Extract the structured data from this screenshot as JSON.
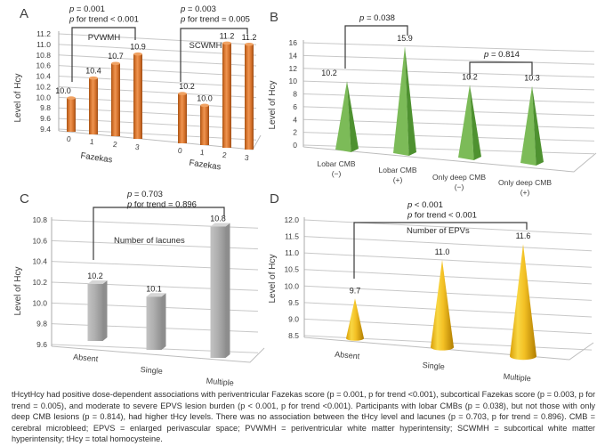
{
  "caption": "tHcytHcy had positive dose-dependent associations with periventricular Fazekas score (p = 0.001, p for trend <0.001), subcortical Fazekas score (p = 0.003, p for trend = 0.005), and moderate to severe EPVS lesion burden (p < 0.001, p for trend <0.001). Participants with lobar CMBs (p = 0.038), but not those with only deep CMB lesions (p = 0.814), had higher tHcy levels. There was no association between the tHcy level and lacunes (p = 0.703, p for trend = 0.896). CMB = cerebral microbleed; EPVS = enlarged perivascular space; PVWMH = periventricular white matter hyperintensity; SCWMH = subcortical white matter hyperintensity; tHcy = total homocysteine.",
  "chart_data": [
    {
      "panel": "A",
      "type": "bar",
      "bar_style": "cylinder",
      "color": "#E07A33",
      "ylabel": "Level of Hcy",
      "ylim": [
        9.4,
        11.2
      ],
      "ytick_step": 0.2,
      "yticks": [
        "11.2",
        "11.0",
        "10.8",
        "10.6",
        "10.4",
        "10.2",
        "10.0",
        "9.8",
        "9.6",
        "9.4"
      ],
      "grid": true,
      "groups": [
        {
          "name": "PVWMH",
          "xlabel": "Fazekas",
          "categories": [
            "0",
            "1",
            "2",
            "3"
          ],
          "values": [
            10.0,
            10.4,
            10.7,
            10.9
          ],
          "value_labels": [
            "10.0",
            "10.4",
            "10.7",
            "10.9"
          ]
        },
        {
          "name": "SCWMH",
          "xlabel": "Fazekas",
          "categories": [
            "0",
            "1",
            "2",
            "3"
          ],
          "values": [
            10.2,
            10.0,
            11.2,
            11.2
          ],
          "value_labels": [
            "10.2",
            "10.0",
            "11.2",
            "11.2"
          ]
        }
      ],
      "annotations": [
        {
          "lines": [
            "p = 0.001",
            "p for trend < 0.001"
          ]
        },
        {
          "lines": [
            "p = 0.003",
            "p for trend = 0.005"
          ]
        }
      ]
    },
    {
      "panel": "B",
      "type": "bar",
      "bar_style": "pyramid",
      "color": "#6AAC49",
      "ylabel": "Level of Hcy",
      "ylim": [
        0,
        16
      ],
      "ytick_step": 2,
      "yticks": [
        "16",
        "14",
        "12",
        "10",
        "8",
        "6",
        "4",
        "2",
        "0"
      ],
      "grid": true,
      "categories": [
        [
          "Lobar CMB",
          "(−)"
        ],
        [
          "Lobar CMB",
          "(+)"
        ],
        [
          "Only deep CMB",
          "(−)"
        ],
        [
          "Only deep CMB",
          "(+)"
        ]
      ],
      "values": [
        10.2,
        15.9,
        10.2,
        10.3
      ],
      "value_labels": [
        "10.2",
        "15.9",
        "10.2",
        "10.3"
      ],
      "annotations": [
        {
          "lines": [
            "p = 0.038"
          ]
        },
        {
          "lines": [
            "p = 0.814"
          ]
        }
      ]
    },
    {
      "panel": "C",
      "type": "bar",
      "bar_style": "box",
      "color": "#ACACAC",
      "ylabel": "Level of Hcy",
      "ylim": [
        9.6,
        10.8
      ],
      "ytick_step": 0.2,
      "yticks": [
        "10.8",
        "10.6",
        "10.4",
        "10.2",
        "10.0",
        "9.8",
        "9.6"
      ],
      "grid": true,
      "series_label": "Number of lacunes",
      "categories": [
        "Absent",
        "Single",
        "Multiple"
      ],
      "values": [
        10.2,
        10.1,
        10.8
      ],
      "value_labels": [
        "10.2",
        "10.1",
        "10.8"
      ],
      "annotations": [
        {
          "lines": [
            "p = 0.703",
            "p for trend = 0.896"
          ]
        }
      ]
    },
    {
      "panel": "D",
      "type": "bar",
      "bar_style": "cone",
      "color": "#F0BC1A",
      "ylabel": "Level of Hcy",
      "ylim": [
        8.5,
        12.0
      ],
      "ytick_step": 0.5,
      "yticks": [
        "12.0",
        "11.5",
        "11.0",
        "10.5",
        "10.0",
        "9.5",
        "9.0",
        "8.5"
      ],
      "grid": true,
      "series_label": "Number of EPVs",
      "categories": [
        "Absent",
        "Single",
        "Multiple"
      ],
      "values": [
        9.7,
        11.0,
        11.6
      ],
      "value_labels": [
        "9.7",
        "11.0",
        "11.6"
      ],
      "annotations": [
        {
          "lines": [
            "p < 0.001",
            "p for trend < 0.001"
          ]
        }
      ]
    }
  ]
}
